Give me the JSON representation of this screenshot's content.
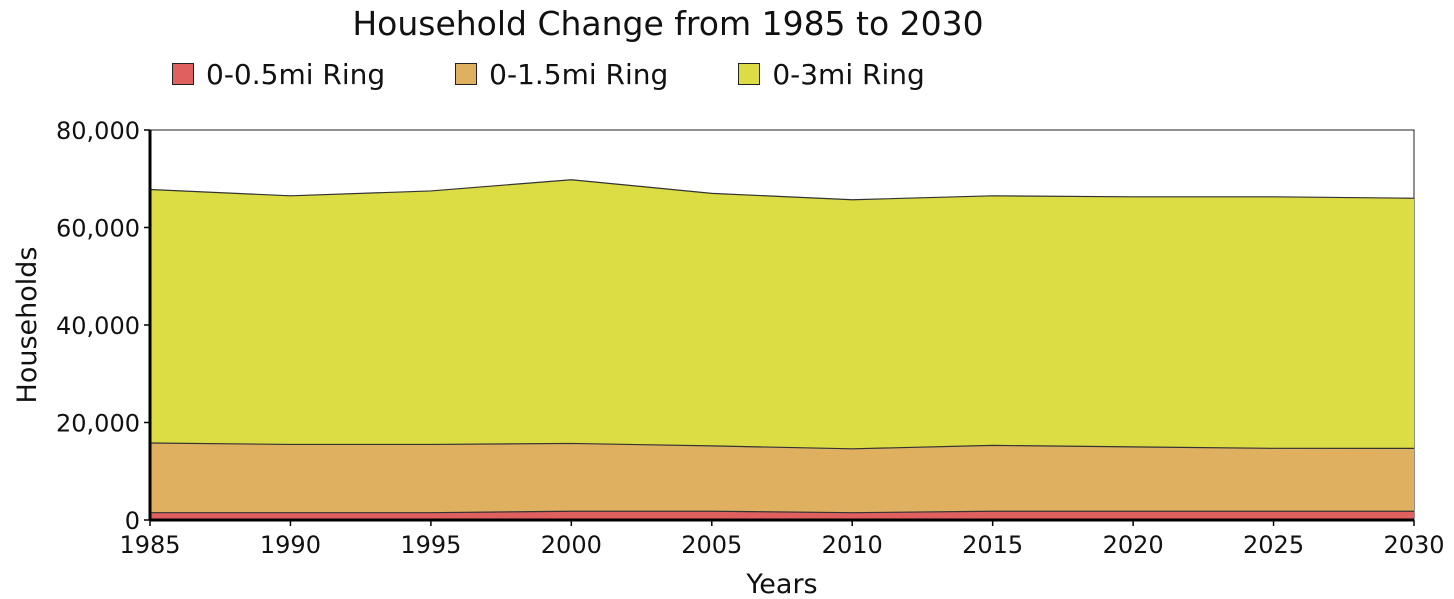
{
  "chart_data": {
    "type": "area",
    "stacked": true,
    "title": "Household Change from 1985 to 2030",
    "xlabel": "Years",
    "ylabel": "Households",
    "x": [
      1985,
      1990,
      1995,
      2000,
      2005,
      2010,
      2015,
      2020,
      2025,
      2030
    ],
    "ylim": [
      0,
      80000
    ],
    "yticks": [
      0,
      20000,
      40000,
      60000,
      80000
    ],
    "ytick_labels": [
      "0",
      "20,000",
      "40,000",
      "60,000",
      "80,000"
    ],
    "xtick_labels": [
      "1985",
      "1990",
      "1995",
      "2000",
      "2005",
      "2010",
      "2015",
      "2020",
      "2025",
      "2030"
    ],
    "grid": false,
    "legend_position": "top",
    "series": [
      {
        "name": "0-0.5mi Ring",
        "color": "#e06060",
        "values": [
          1500,
          1500,
          1500,
          1800,
          1800,
          1500,
          1800,
          1800,
          1800,
          1800
        ]
      },
      {
        "name": "0-1.5mi Ring",
        "color": "#deb060",
        "values": [
          15800,
          15500,
          15500,
          15700,
          15200,
          14600,
          15300,
          15000,
          14700,
          14700
        ]
      },
      {
        "name": "0-3mi Ring",
        "color": "#dcdc44",
        "values": [
          67800,
          66500,
          67500,
          69800,
          67000,
          65700,
          66500,
          66300,
          66300,
          66000
        ]
      }
    ]
  }
}
